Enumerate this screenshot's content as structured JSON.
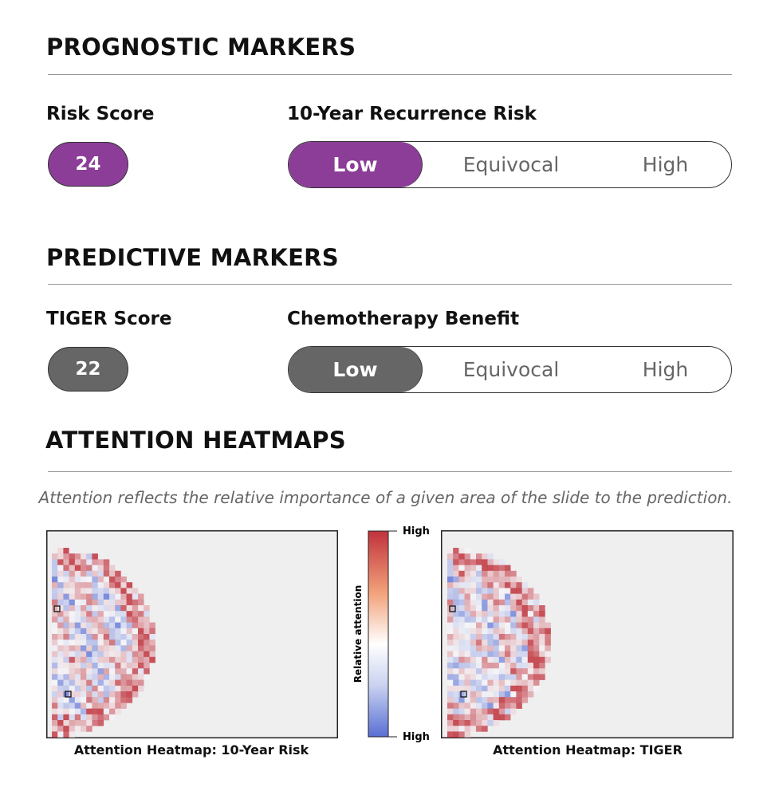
{
  "sections": [
    {
      "title": "PROGNOSTIC MARKERS",
      "score": {
        "label": "Risk Score",
        "value": 24
      },
      "scale": {
        "label": "10-Year Recurrence Risk",
        "options": [
          "Low",
          "Equivocal",
          "High"
        ],
        "selected": 0
      },
      "color": "#8b3d98"
    },
    {
      "title": "PREDICTIVE MARKERS",
      "score": {
        "label": "TIGER Score",
        "value": 22
      },
      "scale": {
        "label": "Chemotherapy Benefit",
        "options": [
          "Low",
          "Equivocal",
          "High"
        ],
        "selected": 0
      },
      "color": "#666666"
    }
  ],
  "heatmaps": {
    "title": "ATTENTION HEATMAPS",
    "caption": "Attention reflects the relative importance of a given area of the slide to the prediction.",
    "panels": [
      {
        "title": "Attention Heatmap: 10-Year Risk"
      },
      {
        "title": "Attention Heatmap: TIGER"
      }
    ],
    "colorbar": {
      "label": "Relative attention",
      "top": "High",
      "bottom": "High"
    }
  }
}
